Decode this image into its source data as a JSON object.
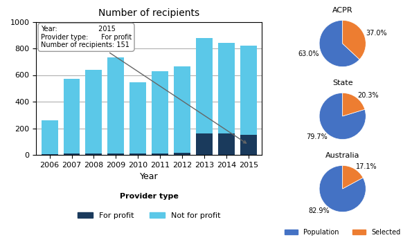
{
  "chart_data": [
    {
      "type": "bar",
      "stacked": true,
      "title": "Number of recipients",
      "x_label": "Year",
      "categories": [
        "2006",
        "2007",
        "2008",
        "2009",
        "2010",
        "2011",
        "2012",
        "2013",
        "2014",
        "2015"
      ],
      "series": [
        {
          "name": "For profit",
          "color": "#1a3a5c",
          "values": [
            5,
            8,
            10,
            10,
            8,
            10,
            15,
            160,
            160,
            151
          ]
        },
        {
          "name": "Not for profit",
          "color": "#5bc8e8",
          "values": [
            255,
            565,
            630,
            720,
            535,
            620,
            650,
            720,
            680,
            670
          ]
        }
      ],
      "ylim": [
        0,
        1000
      ],
      "yticks": [
        0,
        200,
        400,
        600,
        800,
        1000
      ],
      "grid": true,
      "legend": "upper center",
      "annotations": [
        {
          "text": "Provider type"
        },
        {
          "text": "Year:                   2015\nProvider type:      For profit\nNumber of recipients: 151",
          "x": "2015",
          "series": "For profit"
        }
      ]
    },
    {
      "type": "pie",
      "title": "ACPR",
      "categories": [
        "Population",
        "Selected"
      ],
      "values": [
        63.0,
        37.0
      ],
      "value_labels": [
        "63.0%",
        "37.0%"
      ],
      "colors": [
        "#4472c4",
        "#ed7d31"
      ]
    },
    {
      "type": "pie",
      "title": "State",
      "categories": [
        "Population",
        "Selected"
      ],
      "values": [
        79.7,
        20.3
      ],
      "value_labels": [
        "79.7%",
        "20.3%"
      ],
      "colors": [
        "#4472c4",
        "#ed7d31"
      ]
    },
    {
      "type": "pie",
      "title": "Australia",
      "categories": [
        "Population",
        "Selected"
      ],
      "values": [
        82.9,
        17.1
      ],
      "value_labels": [
        "82.9%",
        "17.1%"
      ],
      "colors": [
        "#4472c4",
        "#ed7d31"
      ],
      "legend": "lower center"
    }
  ]
}
